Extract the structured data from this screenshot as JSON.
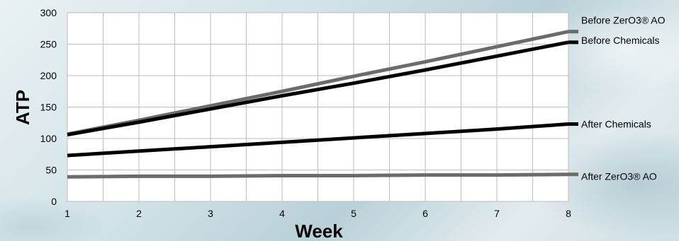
{
  "chart_data": {
    "type": "line",
    "xlabel": "Week",
    "ylabel": "ATP",
    "xlim": [
      1,
      8
    ],
    "ylim": [
      0,
      300
    ],
    "x_ticks": [
      "1",
      "2",
      "3",
      "4",
      "5",
      "6",
      "7",
      "8"
    ],
    "y_ticks": [
      "0",
      "50",
      "100",
      "150",
      "200",
      "250",
      "300"
    ],
    "grid": true,
    "legend": "inline-right",
    "series": [
      {
        "name": "Before ZerO3® AO",
        "color": "#6b6b6b",
        "x": [
          1,
          2,
          3,
          4,
          5,
          6,
          7,
          8
        ],
        "values": [
          107,
          129,
          152,
          175,
          199,
          222,
          246,
          270
        ]
      },
      {
        "name": "Before Chemicals",
        "color": "#000000",
        "x": [
          1,
          2,
          3,
          4,
          5,
          6,
          7,
          8
        ],
        "values": [
          106,
          126,
          147,
          168,
          188,
          209,
          231,
          253
        ]
      },
      {
        "name": "After Chemicals",
        "color": "#000000",
        "x": [
          1,
          2,
          3,
          4,
          5,
          6,
          7,
          8
        ],
        "values": [
          73,
          80,
          87,
          94,
          101,
          108,
          115,
          123
        ]
      },
      {
        "name": "After ZerO3® AO",
        "color": "#6b6b6b",
        "x": [
          1,
          2,
          3,
          4,
          5,
          6,
          7,
          8
        ],
        "values": [
          39,
          40,
          40,
          41,
          41,
          42,
          42,
          43
        ]
      }
    ]
  }
}
